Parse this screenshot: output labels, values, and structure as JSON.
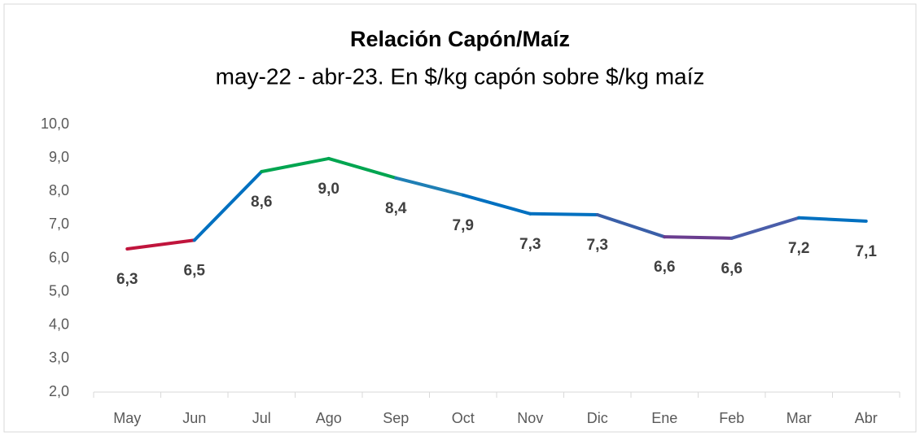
{
  "chart_data": {
    "type": "line",
    "title": "Relación Capón/Maíz",
    "subtitle": "may-22 - abr-23. En $/kg capón sobre $/kg maíz",
    "categories": [
      "May",
      "Jun",
      "Jul",
      "Ago",
      "Sep",
      "Oct",
      "Nov",
      "Dic",
      "Ene",
      "Feb",
      "Mar",
      "Abr"
    ],
    "values": [
      6.28,
      6.54,
      8.59,
      8.98,
      8.4,
      7.89,
      7.33,
      7.3,
      6.64,
      6.6,
      7.21,
      7.11
    ],
    "value_labels": [
      "6,3",
      "6,5",
      "8,6",
      "9,0",
      "8,4",
      "7,9",
      "7,3",
      "7,3",
      "6,6",
      "6,6",
      "7,2",
      "7,1"
    ],
    "segment_colors": [
      "#c0143c",
      "#0070c0",
      "#00a550",
      "#00a550",
      "#1f7fb5",
      "#0070c0",
      "#0070c0",
      "#3a5fa8",
      "#6a3d8f",
      "#4a5eaa",
      "#0070c0"
    ],
    "ylim": [
      2,
      10
    ],
    "yticks": [
      {
        "value": 2,
        "label": "2,0"
      },
      {
        "value": 3,
        "label": "3,0"
      },
      {
        "value": 4,
        "label": "4,0"
      },
      {
        "value": 5,
        "label": "5,0"
      },
      {
        "value": 6,
        "label": "6,0"
      },
      {
        "value": 7,
        "label": "7,0"
      },
      {
        "value": 8,
        "label": "8,0"
      },
      {
        "value": 9,
        "label": "9,0"
      },
      {
        "value": 10,
        "label": "10,0"
      }
    ],
    "grid": false
  }
}
